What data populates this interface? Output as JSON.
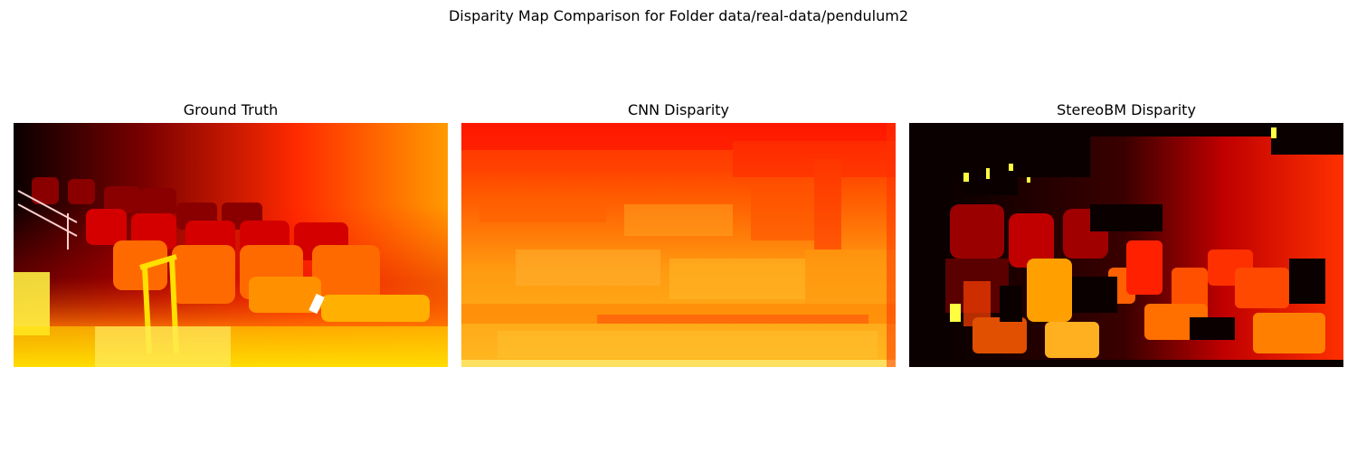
{
  "chart_data": {
    "type": "heatmap",
    "title": "Disparity Map Comparison for Folder data/real-data/pendulum2",
    "colormap": "hot",
    "colors": {
      "black": "#0a0000",
      "dark_red": "#5a0000",
      "red": "#ff1a00",
      "orange": "#ff8c00",
      "yellow": "#ffff30"
    },
    "panels": [
      {
        "title": "Ground Truth",
        "axis": "off"
      },
      {
        "title": "CNN Disparity",
        "axis": "off"
      },
      {
        "title": "StereoBM Disparity",
        "axis": "off"
      }
    ]
  }
}
